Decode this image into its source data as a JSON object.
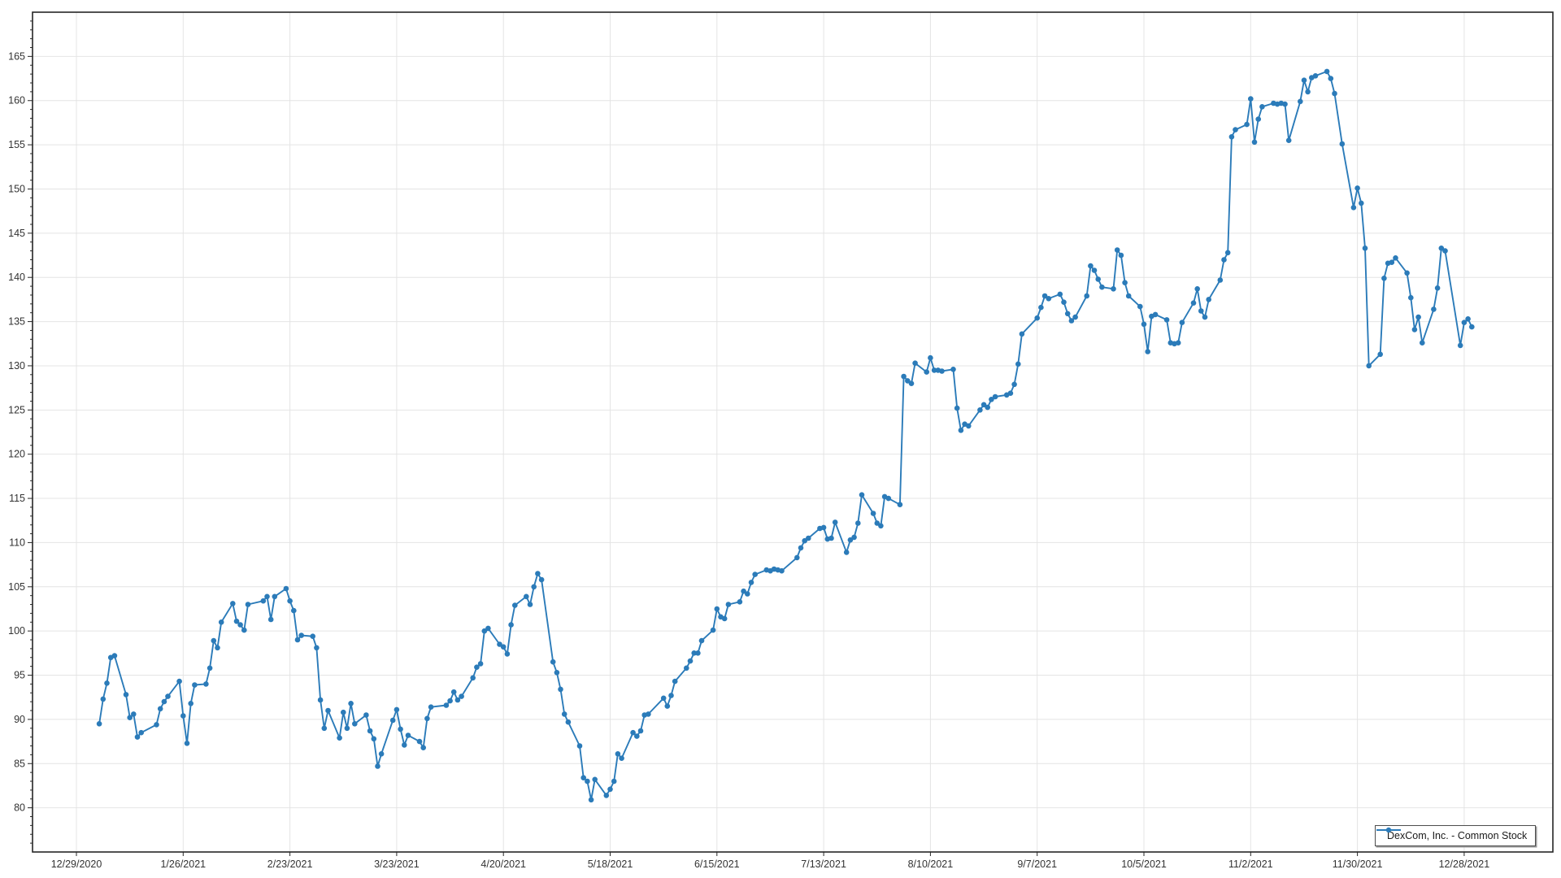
{
  "legend": {
    "label": "DexCom, Inc. - Common Stock"
  },
  "colors": {
    "series": "#2b7bb9",
    "grid": "#e4e4e4",
    "axis": "#262626",
    "tick_label": "#333333",
    "background": "#ffffff"
  },
  "chart_data": {
    "type": "line",
    "title": "",
    "xlabel": "",
    "ylabel": "",
    "legend_position": "bottom-right",
    "grid": true,
    "y_axis": {
      "min": 75,
      "max": 170,
      "label_start": 80,
      "label_end": 165,
      "label_step": 5,
      "minor_tick_step": 1
    },
    "x_axis": {
      "start_date": "2020-12-29",
      "tick_interval_days": 28,
      "tick_labels": [
        "12/29/2020",
        "1/26/2021",
        "2/23/2021",
        "3/23/2021",
        "4/20/2021",
        "5/18/2021",
        "6/15/2021",
        "7/13/2021",
        "8/10/2021",
        "9/7/2021",
        "10/5/2021",
        "11/2/2021",
        "11/30/2021",
        "12/28/2021"
      ]
    },
    "series": [
      {
        "name": "DexCom, Inc. - Common Stock",
        "marker": "circle",
        "points": [
          [
            "2021-01-04",
            89.5
          ],
          [
            "2021-01-05",
            92.3
          ],
          [
            "2021-01-06",
            94.1
          ],
          [
            "2021-01-07",
            97.0
          ],
          [
            "2021-01-08",
            97.2
          ],
          [
            "2021-01-11",
            92.8
          ],
          [
            "2021-01-12",
            90.2
          ],
          [
            "2021-01-13",
            90.6
          ],
          [
            "2021-01-14",
            88.0
          ],
          [
            "2021-01-15",
            88.5
          ],
          [
            "2021-01-19",
            89.4
          ],
          [
            "2021-01-20",
            91.2
          ],
          [
            "2021-01-21",
            92.0
          ],
          [
            "2021-01-22",
            92.6
          ],
          [
            "2021-01-25",
            94.3
          ],
          [
            "2021-01-26",
            90.4
          ],
          [
            "2021-01-27",
            87.3
          ],
          [
            "2021-01-28",
            91.8
          ],
          [
            "2021-01-29",
            93.9
          ],
          [
            "2021-02-01",
            94.0
          ],
          [
            "2021-02-02",
            95.8
          ],
          [
            "2021-02-03",
            98.9
          ],
          [
            "2021-02-04",
            98.1
          ],
          [
            "2021-02-05",
            101.0
          ],
          [
            "2021-02-08",
            103.1
          ],
          [
            "2021-02-09",
            101.1
          ],
          [
            "2021-02-10",
            100.7
          ],
          [
            "2021-02-11",
            100.1
          ],
          [
            "2021-02-12",
            103.0
          ],
          [
            "2021-02-16",
            103.4
          ],
          [
            "2021-02-17",
            103.9
          ],
          [
            "2021-02-18",
            101.3
          ],
          [
            "2021-02-19",
            103.9
          ],
          [
            "2021-02-22",
            104.8
          ],
          [
            "2021-02-23",
            103.4
          ],
          [
            "2021-02-24",
            102.3
          ],
          [
            "2021-02-25",
            99.0
          ],
          [
            "2021-02-26",
            99.5
          ],
          [
            "2021-03-01",
            99.4
          ],
          [
            "2021-03-02",
            98.1
          ],
          [
            "2021-03-03",
            92.2
          ],
          [
            "2021-03-04",
            89.0
          ],
          [
            "2021-03-05",
            91.0
          ],
          [
            "2021-03-08",
            87.9
          ],
          [
            "2021-03-09",
            90.8
          ],
          [
            "2021-03-10",
            89.0
          ],
          [
            "2021-03-11",
            91.8
          ],
          [
            "2021-03-12",
            89.5
          ],
          [
            "2021-03-15",
            90.5
          ],
          [
            "2021-03-16",
            88.7
          ],
          [
            "2021-03-17",
            87.8
          ],
          [
            "2021-03-18",
            84.7
          ],
          [
            "2021-03-19",
            86.1
          ],
          [
            "2021-03-22",
            89.9
          ],
          [
            "2021-03-23",
            91.1
          ],
          [
            "2021-03-24",
            88.9
          ],
          [
            "2021-03-25",
            87.1
          ],
          [
            "2021-03-26",
            88.2
          ],
          [
            "2021-03-29",
            87.5
          ],
          [
            "2021-03-30",
            86.8
          ],
          [
            "2021-03-31",
            90.1
          ],
          [
            "2021-04-01",
            91.4
          ],
          [
            "2021-04-05",
            91.6
          ],
          [
            "2021-04-06",
            92.1
          ],
          [
            "2021-04-07",
            93.1
          ],
          [
            "2021-04-08",
            92.2
          ],
          [
            "2021-04-09",
            92.6
          ],
          [
            "2021-04-12",
            94.7
          ],
          [
            "2021-04-13",
            95.9
          ],
          [
            "2021-04-14",
            96.3
          ],
          [
            "2021-04-15",
            100.0
          ],
          [
            "2021-04-16",
            100.3
          ],
          [
            "2021-04-19",
            98.5
          ],
          [
            "2021-04-20",
            98.2
          ],
          [
            "2021-04-21",
            97.4
          ],
          [
            "2021-04-22",
            100.7
          ],
          [
            "2021-04-23",
            102.9
          ],
          [
            "2021-04-26",
            103.9
          ],
          [
            "2021-04-27",
            103.0
          ],
          [
            "2021-04-28",
            105.0
          ],
          [
            "2021-04-29",
            106.5
          ],
          [
            "2021-04-30",
            105.8
          ],
          [
            "2021-05-03",
            96.5
          ],
          [
            "2021-05-04",
            95.3
          ],
          [
            "2021-05-05",
            93.4
          ],
          [
            "2021-05-06",
            90.6
          ],
          [
            "2021-05-07",
            89.7
          ],
          [
            "2021-05-10",
            87.0
          ],
          [
            "2021-05-11",
            83.4
          ],
          [
            "2021-05-12",
            83.0
          ],
          [
            "2021-05-13",
            80.9
          ],
          [
            "2021-05-14",
            83.2
          ],
          [
            "2021-05-17",
            81.4
          ],
          [
            "2021-05-18",
            82.1
          ],
          [
            "2021-05-19",
            83.0
          ],
          [
            "2021-05-20",
            86.1
          ],
          [
            "2021-05-21",
            85.6
          ],
          [
            "2021-05-24",
            88.5
          ],
          [
            "2021-05-25",
            88.1
          ],
          [
            "2021-05-26",
            88.7
          ],
          [
            "2021-05-27",
            90.5
          ],
          [
            "2021-05-28",
            90.6
          ],
          [
            "2021-06-01",
            92.4
          ],
          [
            "2021-06-02",
            91.5
          ],
          [
            "2021-06-03",
            92.7
          ],
          [
            "2021-06-04",
            94.3
          ],
          [
            "2021-06-07",
            95.8
          ],
          [
            "2021-06-08",
            96.6
          ],
          [
            "2021-06-09",
            97.5
          ],
          [
            "2021-06-10",
            97.5
          ],
          [
            "2021-06-11",
            98.9
          ],
          [
            "2021-06-14",
            100.1
          ],
          [
            "2021-06-15",
            102.5
          ],
          [
            "2021-06-16",
            101.6
          ],
          [
            "2021-06-17",
            101.4
          ],
          [
            "2021-06-18",
            103.0
          ],
          [
            "2021-06-21",
            103.3
          ],
          [
            "2021-06-22",
            104.5
          ],
          [
            "2021-06-23",
            104.2
          ],
          [
            "2021-06-24",
            105.5
          ],
          [
            "2021-06-25",
            106.4
          ],
          [
            "2021-06-28",
            106.9
          ],
          [
            "2021-06-29",
            106.8
          ],
          [
            "2021-06-30",
            107.0
          ],
          [
            "2021-07-01",
            106.9
          ],
          [
            "2021-07-02",
            106.8
          ],
          [
            "2021-07-06",
            108.3
          ],
          [
            "2021-07-07",
            109.4
          ],
          [
            "2021-07-08",
            110.2
          ],
          [
            "2021-07-09",
            110.5
          ],
          [
            "2021-07-12",
            111.6
          ],
          [
            "2021-07-13",
            111.7
          ],
          [
            "2021-07-14",
            110.4
          ],
          [
            "2021-07-15",
            110.5
          ],
          [
            "2021-07-16",
            112.3
          ],
          [
            "2021-07-19",
            108.9
          ],
          [
            "2021-07-20",
            110.3
          ],
          [
            "2021-07-21",
            110.6
          ],
          [
            "2021-07-22",
            112.2
          ],
          [
            "2021-07-23",
            115.4
          ],
          [
            "2021-07-26",
            113.3
          ],
          [
            "2021-07-27",
            112.2
          ],
          [
            "2021-07-28",
            111.9
          ],
          [
            "2021-07-29",
            115.2
          ],
          [
            "2021-07-30",
            115.0
          ],
          [
            "2021-08-02",
            114.3
          ],
          [
            "2021-08-03",
            128.8
          ],
          [
            "2021-08-04",
            128.3
          ],
          [
            "2021-08-05",
            128.0
          ],
          [
            "2021-08-06",
            130.3
          ],
          [
            "2021-08-09",
            129.3
          ],
          [
            "2021-08-10",
            130.9
          ],
          [
            "2021-08-11",
            129.5
          ],
          [
            "2021-08-12",
            129.5
          ],
          [
            "2021-08-13",
            129.4
          ],
          [
            "2021-08-16",
            129.6
          ],
          [
            "2021-08-17",
            125.2
          ],
          [
            "2021-08-18",
            122.7
          ],
          [
            "2021-08-19",
            123.4
          ],
          [
            "2021-08-20",
            123.2
          ],
          [
            "2021-08-23",
            125.0
          ],
          [
            "2021-08-24",
            125.6
          ],
          [
            "2021-08-25",
            125.3
          ],
          [
            "2021-08-26",
            126.2
          ],
          [
            "2021-08-27",
            126.5
          ],
          [
            "2021-08-30",
            126.7
          ],
          [
            "2021-08-31",
            126.9
          ],
          [
            "2021-09-01",
            127.9
          ],
          [
            "2021-09-02",
            130.2
          ],
          [
            "2021-09-03",
            133.6
          ],
          [
            "2021-09-07",
            135.4
          ],
          [
            "2021-09-08",
            136.6
          ],
          [
            "2021-09-09",
            137.9
          ],
          [
            "2021-09-10",
            137.6
          ],
          [
            "2021-09-13",
            138.1
          ],
          [
            "2021-09-14",
            137.2
          ],
          [
            "2021-09-15",
            135.9
          ],
          [
            "2021-09-16",
            135.1
          ],
          [
            "2021-09-17",
            135.5
          ],
          [
            "2021-09-20",
            137.9
          ],
          [
            "2021-09-21",
            141.3
          ],
          [
            "2021-09-22",
            140.8
          ],
          [
            "2021-09-23",
            139.8
          ],
          [
            "2021-09-24",
            138.9
          ],
          [
            "2021-09-27",
            138.7
          ],
          [
            "2021-09-28",
            143.1
          ],
          [
            "2021-09-29",
            142.5
          ],
          [
            "2021-09-30",
            139.4
          ],
          [
            "2021-10-01",
            137.9
          ],
          [
            "2021-10-04",
            136.7
          ],
          [
            "2021-10-05",
            134.7
          ],
          [
            "2021-10-06",
            131.6
          ],
          [
            "2021-10-07",
            135.6
          ],
          [
            "2021-10-08",
            135.8
          ],
          [
            "2021-10-11",
            135.2
          ],
          [
            "2021-10-12",
            132.6
          ],
          [
            "2021-10-13",
            132.5
          ],
          [
            "2021-10-14",
            132.6
          ],
          [
            "2021-10-15",
            134.9
          ],
          [
            "2021-10-18",
            137.1
          ],
          [
            "2021-10-19",
            138.7
          ],
          [
            "2021-10-20",
            136.2
          ],
          [
            "2021-10-21",
            135.5
          ],
          [
            "2021-10-22",
            137.5
          ],
          [
            "2021-10-25",
            139.7
          ],
          [
            "2021-10-26",
            142.0
          ],
          [
            "2021-10-27",
            142.8
          ],
          [
            "2021-10-28",
            155.9
          ],
          [
            "2021-10-29",
            156.7
          ],
          [
            "2021-11-01",
            157.3
          ],
          [
            "2021-11-02",
            160.2
          ],
          [
            "2021-11-03",
            155.3
          ],
          [
            "2021-11-04",
            157.9
          ],
          [
            "2021-11-05",
            159.3
          ],
          [
            "2021-11-08",
            159.7
          ],
          [
            "2021-11-09",
            159.6
          ],
          [
            "2021-11-10",
            159.7
          ],
          [
            "2021-11-11",
            159.6
          ],
          [
            "2021-11-12",
            155.5
          ],
          [
            "2021-11-15",
            159.9
          ],
          [
            "2021-11-16",
            162.3
          ],
          [
            "2021-11-17",
            161.0
          ],
          [
            "2021-11-18",
            162.6
          ],
          [
            "2021-11-19",
            162.8
          ],
          [
            "2021-11-22",
            163.3
          ],
          [
            "2021-11-23",
            162.5
          ],
          [
            "2021-11-24",
            160.8
          ],
          [
            "2021-11-26",
            155.1
          ],
          [
            "2021-11-29",
            147.9
          ],
          [
            "2021-11-30",
            150.1
          ],
          [
            "2021-12-01",
            148.4
          ],
          [
            "2021-12-02",
            143.3
          ],
          [
            "2021-12-03",
            130.0
          ],
          [
            "2021-12-06",
            131.3
          ],
          [
            "2021-12-07",
            139.9
          ],
          [
            "2021-12-08",
            141.6
          ],
          [
            "2021-12-09",
            141.7
          ],
          [
            "2021-12-10",
            142.2
          ],
          [
            "2021-12-13",
            140.5
          ],
          [
            "2021-12-14",
            137.7
          ],
          [
            "2021-12-15",
            134.1
          ],
          [
            "2021-12-16",
            135.5
          ],
          [
            "2021-12-17",
            132.6
          ],
          [
            "2021-12-20",
            136.4
          ],
          [
            "2021-12-21",
            138.8
          ],
          [
            "2021-12-22",
            143.3
          ],
          [
            "2021-12-23",
            143.0
          ],
          [
            "2021-12-27",
            132.3
          ],
          [
            "2021-12-28",
            134.9
          ],
          [
            "2021-12-29",
            135.3
          ],
          [
            "2021-12-30",
            134.4
          ]
        ]
      }
    ]
  }
}
